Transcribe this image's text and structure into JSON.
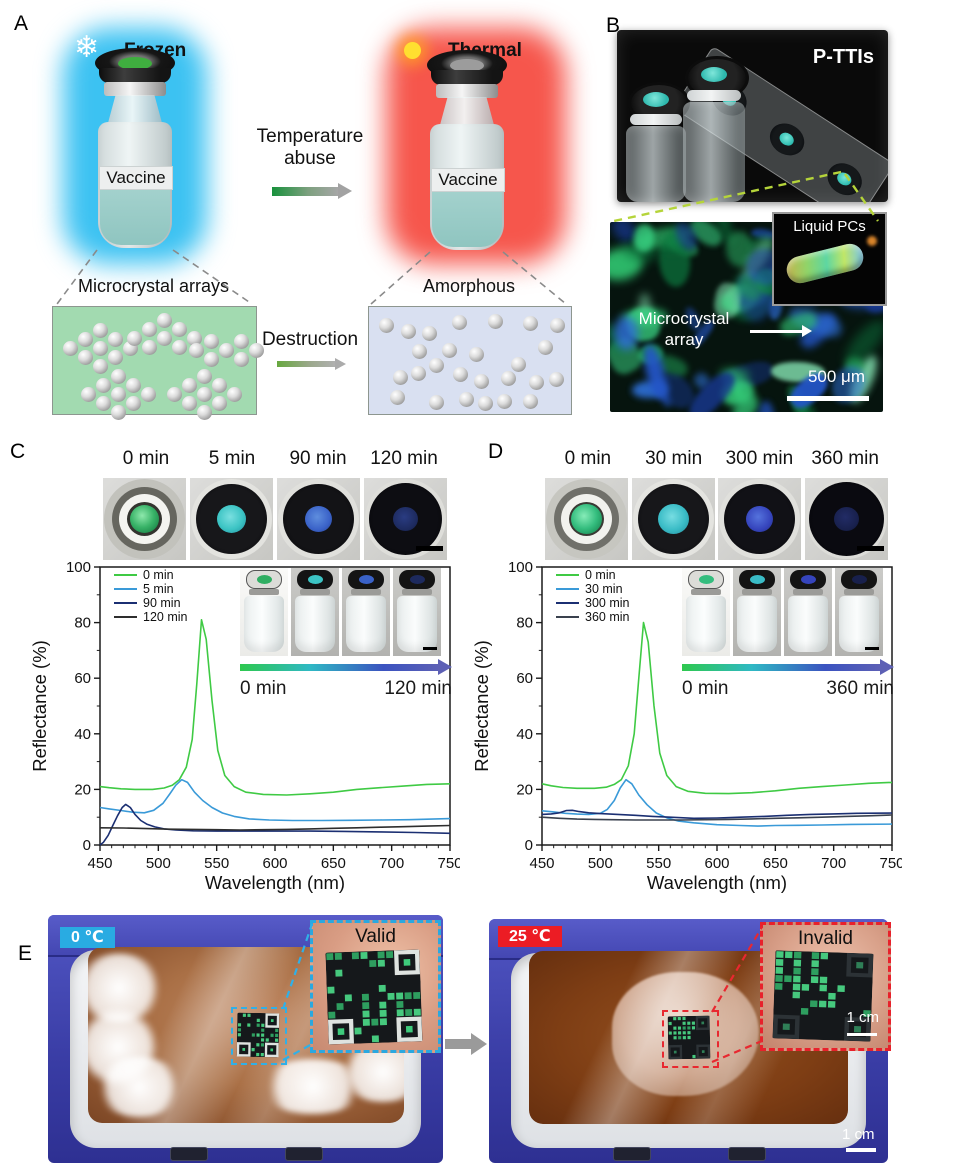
{
  "figure": {
    "panel_a": {
      "label": "A",
      "frozen_title": "Frozen",
      "thermal_title": "Thermal",
      "vial_label_left": "Vaccine",
      "vial_label_right": "Vaccine",
      "arrow_top_label": "Temperature abuse",
      "arrow_bottom_label": "Destruction",
      "state_left": "Microcrystal arrays",
      "state_right": "Amorphous",
      "colors": {
        "frozen_glow": "#3cc2f2",
        "thermal_glow": "#f6564c",
        "frozen_cap_dot": "#3fae3f",
        "thermal_cap_dot": "#9c9c9c"
      }
    },
    "panel_b": {
      "label": "B",
      "photo_caption": "P-TTIs",
      "inset_caption": "Liquid PCs",
      "annotation": "Microcrystal array",
      "scale_bar": "500 μm"
    },
    "panel_c": {
      "label": "C",
      "timepoints": [
        "0 min",
        "5 min",
        "90 min",
        "120 min"
      ],
      "inset_start": "0 min",
      "inset_end": "120 min",
      "cap_dot_colors": [
        "#2fae62",
        "#3cc4c4",
        "#3a62c8",
        "#1d2a5e"
      ]
    },
    "panel_d": {
      "label": "D",
      "timepoints": [
        "0 min",
        "30 min",
        "300 min",
        "360 min"
      ],
      "inset_start": "0 min",
      "inset_end": "360 min",
      "cap_dot_colors": [
        "#34bd7e",
        "#3abcc6",
        "#3544bc",
        "#18204c"
      ]
    },
    "panel_e": {
      "label": "E",
      "left_temp": "0 ℃",
      "right_temp": "25 ℃",
      "left_status": "Valid",
      "right_status": "Invalid",
      "inset_scale": "1 cm",
      "photo_scale": "1 cm",
      "colors": {
        "cold_badge": "#29abe2",
        "warm_badge": "#ec1c24",
        "qr_green": "#46c97e"
      }
    }
  },
  "chart_data": [
    {
      "type": "line",
      "title": "",
      "xlabel": "Wavelength (nm)",
      "ylabel": "Reflectance (%)",
      "xlim": [
        450,
        750
      ],
      "ylim": [
        0,
        100
      ],
      "xticks": [
        450,
        500,
        550,
        600,
        650,
        700,
        750
      ],
      "yticks": [
        0,
        20,
        40,
        60,
        80,
        100
      ],
      "grid": false,
      "legend_position": "top-left",
      "series": [
        {
          "name": "0 min",
          "color": "#3fca44",
          "x": [
            450,
            458,
            468,
            480,
            495,
            505,
            512,
            518,
            524,
            529,
            533,
            537,
            541,
            546,
            551,
            557,
            565,
            575,
            590,
            610,
            630,
            650,
            670,
            690,
            710,
            730,
            750
          ],
          "y": [
            21,
            20.6,
            20.2,
            20,
            20,
            20.5,
            21.5,
            23.5,
            28,
            38,
            58,
            81,
            74,
            52,
            34,
            25,
            21,
            19,
            18.2,
            18,
            18.4,
            19,
            20,
            20.6,
            21.2,
            21.8,
            22
          ]
        },
        {
          "name": "5 min",
          "color": "#3a9ad8",
          "x": [
            450,
            458,
            468,
            478,
            488,
            496,
            504,
            510,
            515,
            520,
            525,
            531,
            538,
            546,
            555,
            565,
            578,
            595,
            615,
            640,
            665,
            690,
            715,
            750
          ],
          "y": [
            13.5,
            13,
            12.4,
            11.8,
            11.6,
            12.5,
            15,
            18.5,
            21.5,
            23.5,
            22.5,
            19,
            16,
            13.5,
            11.5,
            10.3,
            9.4,
            9,
            8.8,
            8.8,
            8.9,
            9,
            9.1,
            9.5
          ]
        },
        {
          "name": "90 min",
          "color": "#1b2f72",
          "x": [
            450,
            453,
            457,
            461,
            465,
            469,
            472,
            476,
            480,
            485,
            490,
            497,
            505,
            515,
            530,
            550,
            575,
            600,
            630,
            660,
            690,
            720,
            750
          ],
          "y": [
            0,
            1,
            3.5,
            7,
            10.5,
            13.5,
            14.6,
            13.5,
            11,
            8.8,
            7.5,
            6.5,
            5.8,
            5.4,
            5.1,
            5,
            5,
            5,
            5,
            4.9,
            4.7,
            4.5,
            4.2
          ]
        },
        {
          "name": "120 min",
          "color": "#2e2e2e",
          "x": [
            450,
            470,
            490,
            510,
            530,
            550,
            570,
            590,
            610,
            630,
            650,
            670,
            690,
            710,
            730,
            750
          ],
          "y": [
            6.2,
            6.1,
            5.9,
            5.7,
            5.6,
            5.5,
            5.4,
            5.5,
            5.6,
            5.8,
            6,
            6.2,
            6.4,
            6.6,
            6.8,
            7
          ]
        }
      ]
    },
    {
      "type": "line",
      "title": "",
      "xlabel": "Wavelength (nm)",
      "ylabel": "Reflectance (%)",
      "xlim": [
        450,
        750
      ],
      "ylim": [
        0,
        100
      ],
      "xticks": [
        450,
        500,
        550,
        600,
        650,
        700,
        750
      ],
      "yticks": [
        0,
        20,
        40,
        60,
        80,
        100
      ],
      "grid": false,
      "legend_position": "top-left",
      "series": [
        {
          "name": "0 min",
          "color": "#3fca44",
          "x": [
            450,
            458,
            468,
            480,
            495,
            505,
            512,
            518,
            524,
            529,
            533,
            537,
            541,
            546,
            551,
            557,
            565,
            575,
            590,
            610,
            630,
            650,
            670,
            690,
            710,
            730,
            750
          ],
          "y": [
            22,
            21.3,
            20.7,
            20.4,
            20.4,
            20.8,
            21.8,
            23.5,
            28.5,
            40,
            60,
            80,
            73,
            50,
            33,
            25,
            21,
            19.3,
            18.6,
            18.5,
            18.8,
            19.5,
            20.4,
            21,
            21.6,
            22.2,
            22.5
          ]
        },
        {
          "name": "30 min",
          "color": "#3a9ad8",
          "x": [
            450,
            460,
            470,
            480,
            490,
            500,
            506,
            512,
            517,
            522,
            527,
            533,
            540,
            548,
            557,
            567,
            580,
            600,
            620,
            635,
            650,
            670,
            690,
            715,
            750
          ],
          "y": [
            12.3,
            11.9,
            11.4,
            11.1,
            11,
            11.4,
            12.8,
            16,
            20.5,
            23.5,
            22,
            18,
            14.5,
            11.5,
            9.8,
            8.6,
            8,
            7.3,
            7,
            6.8,
            7,
            7.1,
            7.2,
            7.4,
            7.5
          ]
        },
        {
          "name": "300 min",
          "color": "#1b2f72",
          "x": [
            450,
            458,
            465,
            471,
            476,
            482,
            490,
            500,
            515,
            530,
            545,
            560,
            580,
            600,
            620,
            640,
            660,
            680,
            700,
            720,
            750
          ],
          "y": [
            11,
            11.2,
            11.6,
            12.4,
            12.5,
            12,
            11.6,
            11.3,
            11,
            10.7,
            10.3,
            10,
            9.6,
            9.7,
            10,
            10.3,
            10.7,
            11,
            11.2,
            11.4,
            11.5
          ]
        },
        {
          "name": "360 min",
          "color": "#3a414e",
          "x": [
            450,
            465,
            480,
            495,
            510,
            530,
            550,
            570,
            590,
            610,
            630,
            650,
            670,
            690,
            710,
            730,
            750
          ],
          "y": [
            10,
            9.6,
            9.3,
            9.2,
            9.1,
            9,
            9,
            9,
            9.1,
            9.2,
            9.4,
            9.6,
            9.8,
            10,
            10.3,
            10.5,
            10.8
          ]
        }
      ]
    }
  ]
}
